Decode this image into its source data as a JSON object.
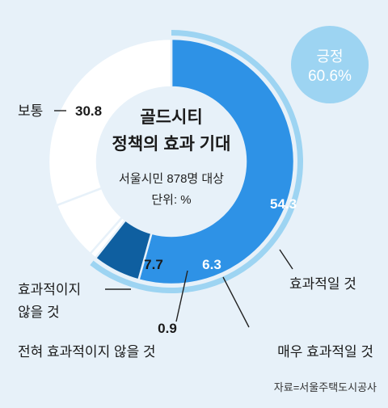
{
  "chart_data": {
    "type": "pie",
    "donut": true,
    "center_title_line1": "골드시티",
    "center_title_line2": "정책의 효과 기대",
    "center_sub_line1": "서울시민 878명 대상",
    "center_sub_line2": "단위: %",
    "slices": [
      {
        "label": "효과적일 것",
        "value": 54.3,
        "value_label": "54.3",
        "color": "#2e92e6"
      },
      {
        "label": "매우 효과적일 것",
        "value": 6.3,
        "value_label": "6.3",
        "color": "#0f5fa0"
      },
      {
        "label": "전혀 효과적이지 않을 것",
        "value": 0.9,
        "value_label": "0.9",
        "color": "#ffffff"
      },
      {
        "label": "효과적이지 않을 것",
        "value": 7.7,
        "value_label": "7.7",
        "color": "#ffffff"
      },
      {
        "label": "보통",
        "value": 30.8,
        "value_label": "30.8",
        "color": "#ffffff"
      }
    ],
    "positive_group": {
      "label": "긍정",
      "value_label": "60.6%",
      "color": "#9dd4f2"
    }
  },
  "labels": {
    "neg_line1": "효과적이지",
    "neg_line2": "않을 것"
  },
  "source": "자료=서울주택도시공사"
}
